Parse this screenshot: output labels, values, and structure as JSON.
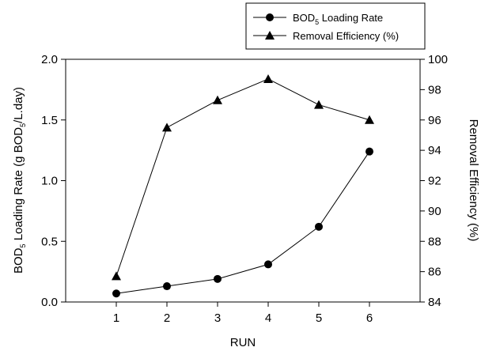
{
  "chart_data": {
    "type": "line",
    "categories": [
      1,
      2,
      3,
      4,
      5,
      6
    ],
    "xlabel": "RUN",
    "ylabel_left": {
      "main": "BOD",
      "sub": "5",
      "rest": " Loading Rate (g BOD",
      "sub2": "5",
      "rest2": "/L.day)"
    },
    "ylabel_right": "Removal Efficiency (%)",
    "ylim_left": [
      0,
      2.0
    ],
    "ylim_right": [
      84,
      100
    ],
    "yticks_left": [
      "0.0",
      "0.5",
      "1.0",
      "1.5",
      "2.0"
    ],
    "yticks_right": [
      "84",
      "86",
      "88",
      "90",
      "92",
      "94",
      "96",
      "98",
      "100"
    ],
    "xticks": [
      "1",
      "2",
      "3",
      "4",
      "5",
      "6"
    ],
    "grid": false,
    "legend_position": "top-right",
    "series": [
      {
        "name_main": "BOD",
        "name_sub": "5",
        "name_rest": " Loading Rate",
        "axis": "left",
        "marker": "circle",
        "values": [
          0.07,
          0.13,
          0.19,
          0.31,
          0.62,
          1.24
        ]
      },
      {
        "name": "Removal Efficiency (%)",
        "axis": "right",
        "marker": "triangle",
        "values": [
          85.7,
          95.5,
          97.3,
          98.7,
          97.0,
          96.0
        ]
      }
    ]
  }
}
